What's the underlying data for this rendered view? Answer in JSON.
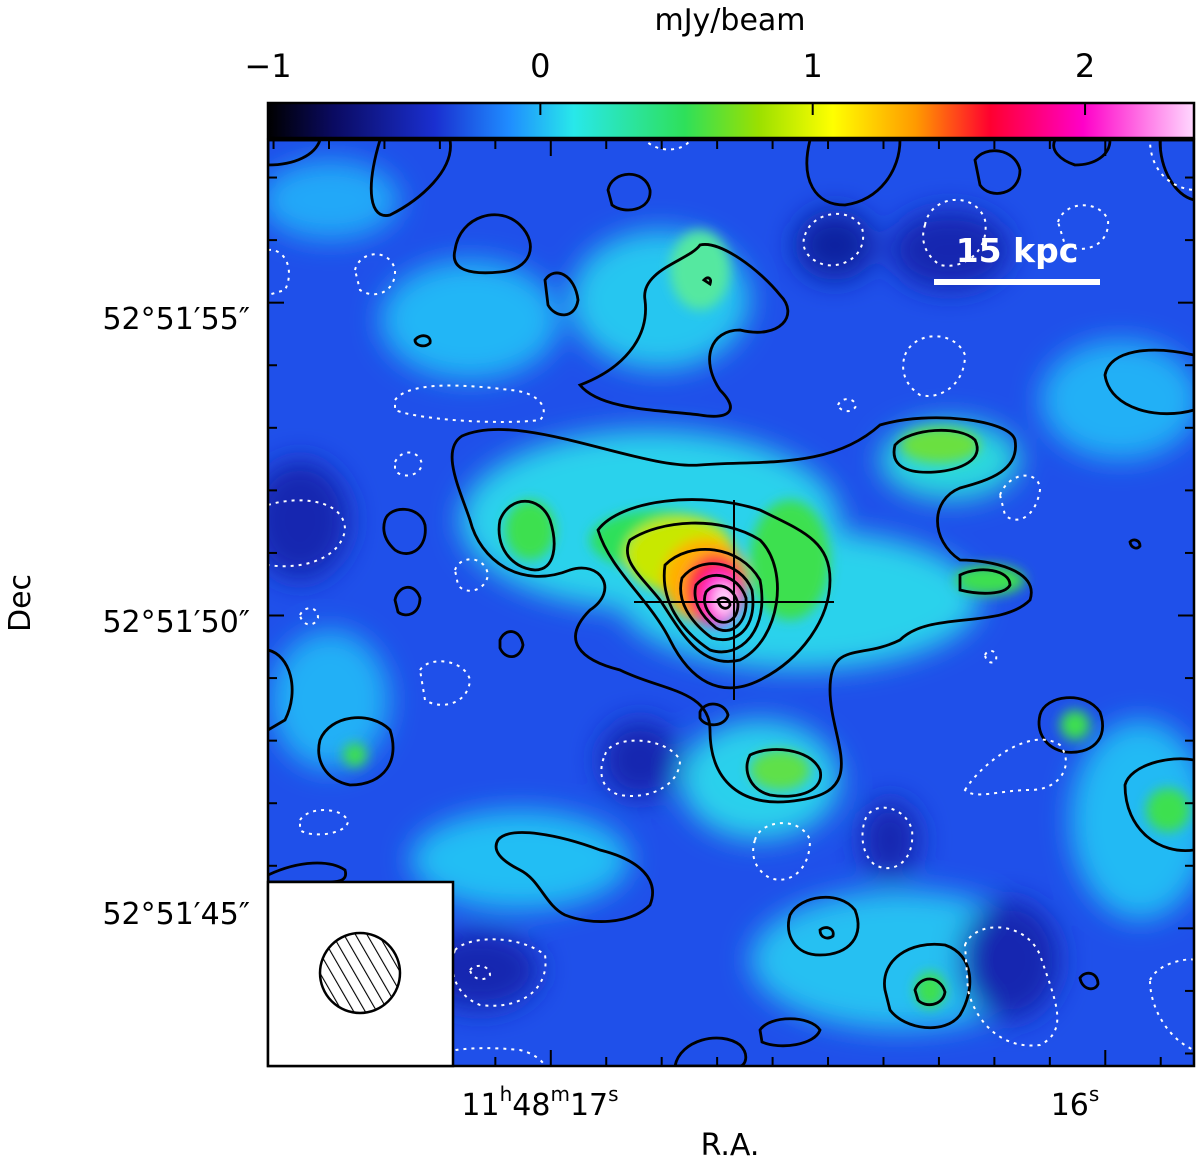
{
  "chart_data": {
    "type": "heatmap",
    "title": "",
    "colorbar": {
      "label": "mJy/beam",
      "range": [
        -1,
        2.4
      ],
      "ticks": [
        -1,
        0,
        1,
        2
      ],
      "tick_labels": [
        "−1",
        "0",
        "1",
        "2"
      ],
      "colormap_stops": [
        "#000000",
        "#0a0a60",
        "#1a2fd0",
        "#1f8cff",
        "#28e8ea",
        "#2ee05a",
        "#9be000",
        "#ffff00",
        "#ff9900",
        "#ff0030",
        "#ff00c8",
        "#ffd8ff"
      ]
    },
    "xlabel": "R.A.",
    "ylabel": "Dec",
    "x_ticks": [
      {
        "label": "11h48m17s",
        "h": "11",
        "m": "48",
        "s": "17",
        "sec": 17
      },
      {
        "label": "16s",
        "s": "16",
        "sec": 16
      }
    ],
    "y_ticks": [
      {
        "label": "52°51′55″",
        "arcsec": 55
      },
      {
        "label": "52°51′50″",
        "arcsec": 50
      },
      {
        "label": "52°51′45″",
        "arcsec": 45
      }
    ],
    "x_range_sec": [
      17.51,
      15.84
    ],
    "y_range_arcsec": [
      42.8,
      57.6
    ],
    "scale_bar": {
      "label": "15 kpc"
    },
    "beam": {
      "shape": "circle",
      "hatched": true,
      "location": "bottom-left"
    },
    "source_marker": {
      "shape": "cross",
      "ra_sec": 16.72,
      "dec_arcsec": 50.3
    },
    "peak_mJy_per_beam": 2.3,
    "contours": {
      "positive": "solid black",
      "negative": "dotted white"
    }
  }
}
